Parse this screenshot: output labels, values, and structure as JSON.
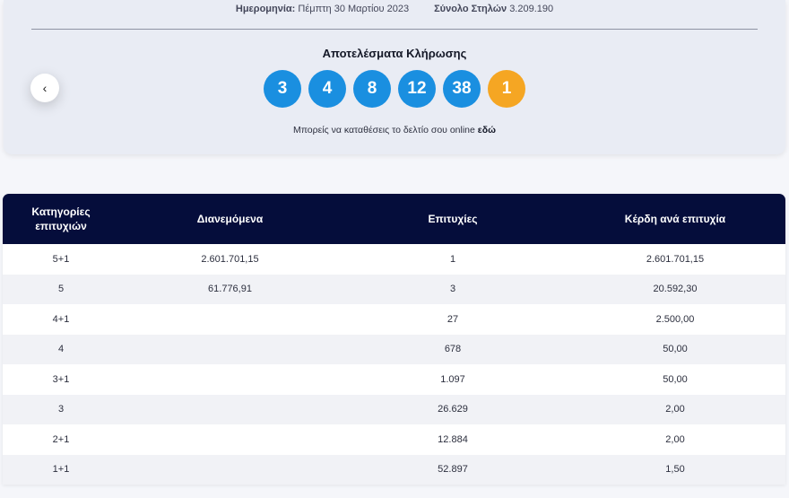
{
  "header": {
    "date_label": "Ημερομηνία:",
    "date_value": "Πέμπτη 30 Μαρτίου 2023",
    "columns_label": "Σύνολο Στηλών",
    "columns_value": "3.209.190"
  },
  "draw": {
    "title": "Αποτελέσματα Κλήρωσης",
    "numbers": [
      "3",
      "4",
      "8",
      "12",
      "38"
    ],
    "bonus": "1",
    "prev_icon": "‹",
    "online_text": "Μπορείς να καταθέσεις το δελτίο σου online",
    "online_link": "εδώ"
  },
  "colors": {
    "ball": "#1a8fe0",
    "bonus_ball": "#f5a623",
    "table_header": "#050d3b"
  },
  "table": {
    "headers": [
      "Κατηγορίες\nεπιτυχιών",
      "Διανεμόμενα",
      "Επιτυχίες",
      "Κέρδη ανά επιτυχία"
    ],
    "rows": [
      [
        "5+1",
        "2.601.701,15",
        "1",
        "2.601.701,15"
      ],
      [
        "5",
        "61.776,91",
        "3",
        "20.592,30"
      ],
      [
        "4+1",
        "",
        "27",
        "2.500,00"
      ],
      [
        "4",
        "",
        "678",
        "50,00"
      ],
      [
        "3+1",
        "",
        "1.097",
        "50,00"
      ],
      [
        "3",
        "",
        "26.629",
        "2,00"
      ],
      [
        "2+1",
        "",
        "12.884",
        "2,00"
      ],
      [
        "1+1",
        "",
        "52.897",
        "1,50"
      ]
    ]
  }
}
